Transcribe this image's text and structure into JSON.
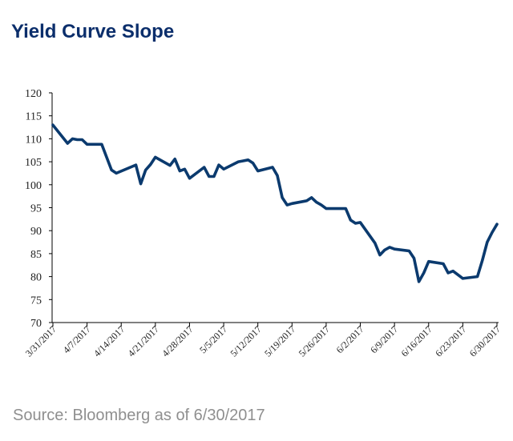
{
  "title": "Yield Curve Slope",
  "source": "Source: Bloomberg as of 6/30/2017",
  "chart_data": {
    "type": "line",
    "title": "Yield Curve Slope",
    "xlabel": "",
    "ylabel": "",
    "ylim": [
      70,
      120
    ],
    "yticks": [
      70,
      75,
      80,
      85,
      90,
      95,
      100,
      105,
      110,
      115,
      120
    ],
    "xticks": [
      "3/31/2017",
      "4/7/2017",
      "4/14/2017",
      "4/21/2017",
      "4/28/2017",
      "5/5/2017",
      "5/12/2017",
      "5/19/2017",
      "5/26/2017",
      "6/2/2017",
      "6/9/2017",
      "6/16/2017",
      "6/23/2017",
      "6/30/2017"
    ],
    "xrange": [
      "2017-03-31",
      "2017-06-30"
    ],
    "grid": false,
    "color": "#0b3a6e",
    "series": [
      {
        "x": [
          "2017-03-31",
          "2017-04-03",
          "2017-04-04",
          "2017-04-05",
          "2017-04-06",
          "2017-04-07",
          "2017-04-10",
          "2017-04-11",
          "2017-04-12",
          "2017-04-13",
          "2017-04-17",
          "2017-04-18",
          "2017-04-19",
          "2017-04-20",
          "2017-04-21",
          "2017-04-24",
          "2017-04-25",
          "2017-04-26",
          "2017-04-27",
          "2017-04-28",
          "2017-05-01",
          "2017-05-02",
          "2017-05-03",
          "2017-05-04",
          "2017-05-05",
          "2017-05-08",
          "2017-05-09",
          "2017-05-10",
          "2017-05-11",
          "2017-05-12",
          "2017-05-15",
          "2017-05-16",
          "2017-05-17",
          "2017-05-18",
          "2017-05-19",
          "2017-05-22",
          "2017-05-23",
          "2017-05-24",
          "2017-05-25",
          "2017-05-26",
          "2017-05-30",
          "2017-05-31",
          "2017-06-01",
          "2017-06-02",
          "2017-06-05",
          "2017-06-06",
          "2017-06-07",
          "2017-06-08",
          "2017-06-09",
          "2017-06-12",
          "2017-06-13",
          "2017-06-14",
          "2017-06-15",
          "2017-06-16",
          "2017-06-19",
          "2017-06-20",
          "2017-06-21",
          "2017-06-22",
          "2017-06-23",
          "2017-06-26",
          "2017-06-27",
          "2017-06-28",
          "2017-06-29",
          "2017-06-30"
        ],
        "values": [
          113,
          109,
          110,
          109.8,
          109.8,
          108.8,
          108.8,
          106,
          103.2,
          102.5,
          104.3,
          100.2,
          103.2,
          104.4,
          106,
          104.2,
          105.6,
          103,
          103.4,
          101.4,
          103.8,
          101.8,
          101.8,
          104.3,
          103.4,
          105,
          105.2,
          105.4,
          104.7,
          103,
          103.8,
          102,
          97.2,
          95.6,
          95.9,
          96.5,
          97.2,
          96.2,
          95.6,
          94.8,
          94.8,
          92.3,
          91.6,
          91.8,
          87.3,
          84.7,
          85.8,
          86.4,
          86,
          85.6,
          84,
          78.9,
          80.8,
          83.3,
          82.8,
          80.8,
          81.2,
          80.4,
          79.6,
          80,
          83.5,
          87.5,
          89.6,
          91.4
        ]
      }
    ]
  }
}
